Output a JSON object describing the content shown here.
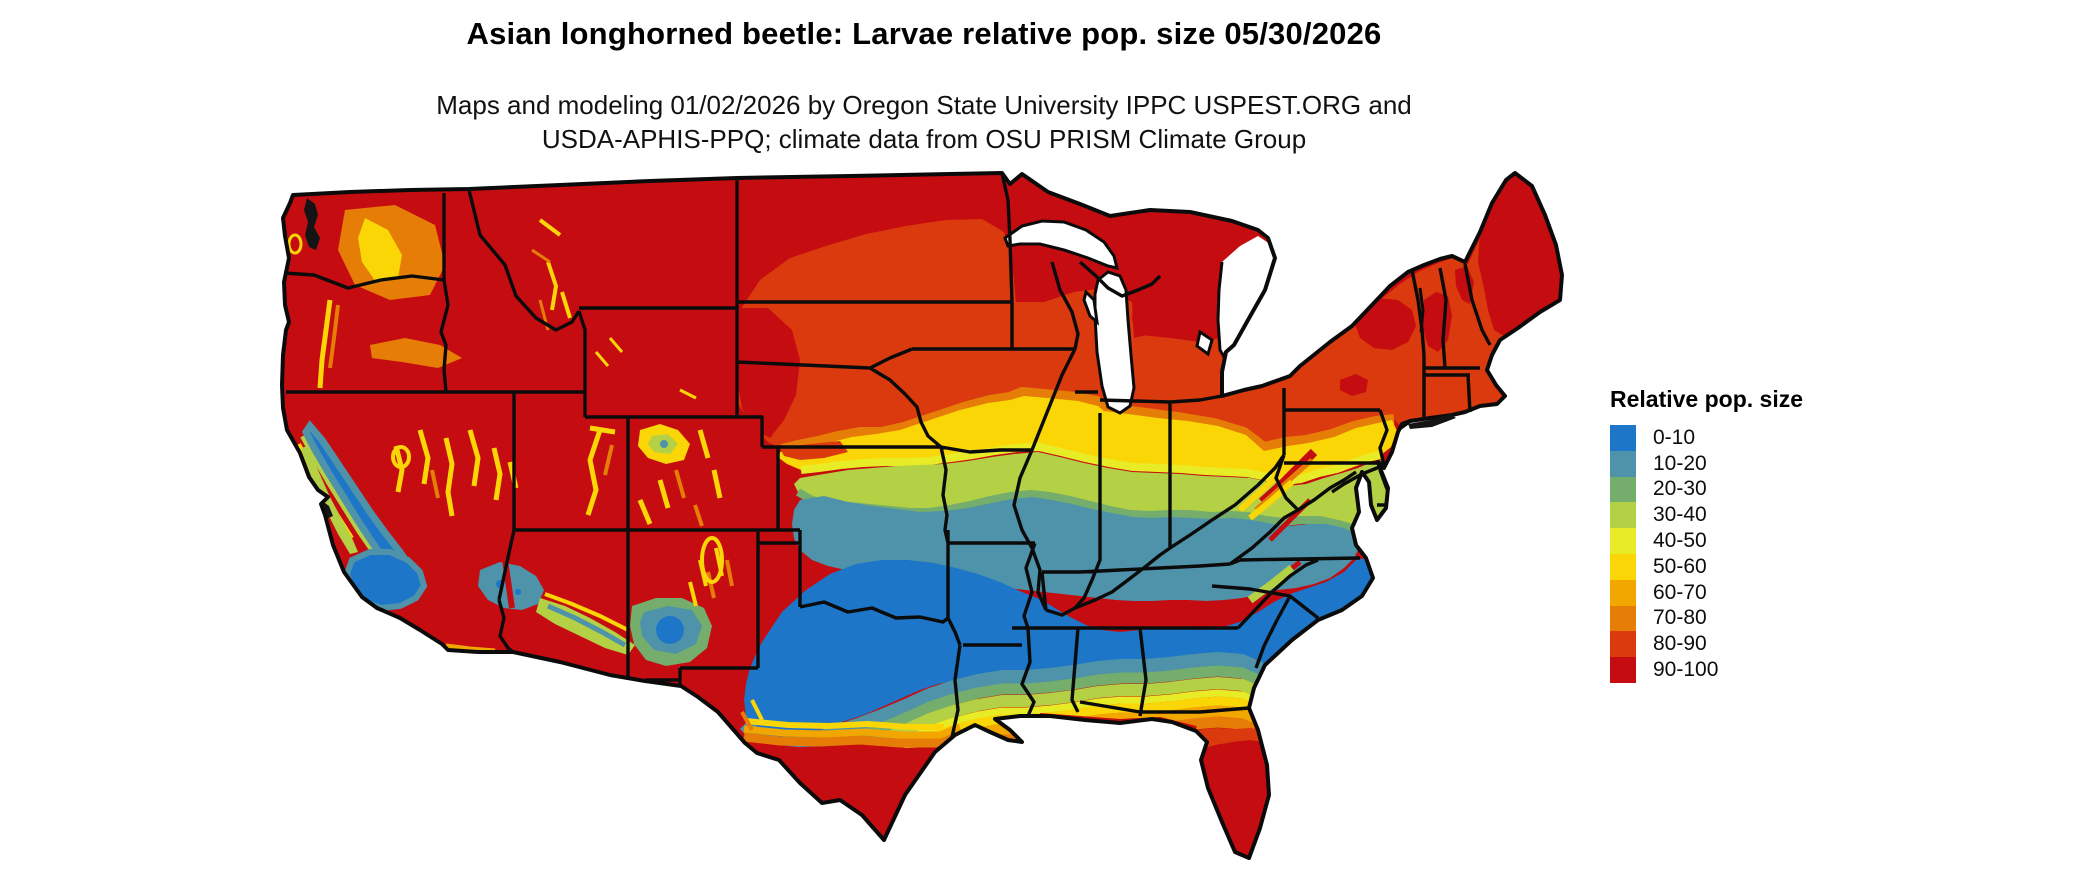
{
  "title": "Asian longhorned beetle: Larvae relative pop. size 05/30/2026",
  "subtitle_line1": "Maps and modeling 01/02/2026 by Oregon State University IPPC USPEST.ORG and",
  "subtitle_line2": "USDA-APHIS-PPQ; climate data from OSU PRISM Climate Group",
  "legend": {
    "title": "Relative pop. size",
    "bins": [
      {
        "label": "0-10",
        "color": "#1D76C8"
      },
      {
        "label": "10-20",
        "color": "#4E93A9"
      },
      {
        "label": "20-30",
        "color": "#74AD6C"
      },
      {
        "label": "30-40",
        "color": "#B4D044"
      },
      {
        "label": "40-50",
        "color": "#E8EC26"
      },
      {
        "label": "50-60",
        "color": "#FAD607"
      },
      {
        "label": "60-70",
        "color": "#F2A600"
      },
      {
        "label": "70-80",
        "color": "#E67D06"
      },
      {
        "label": "80-90",
        "color": "#DA3A0E"
      },
      {
        "label": "90-100",
        "color": "#C50D11"
      }
    ]
  },
  "map": {
    "border_color": "#0b0b0b",
    "water_color": "#ffffff"
  }
}
